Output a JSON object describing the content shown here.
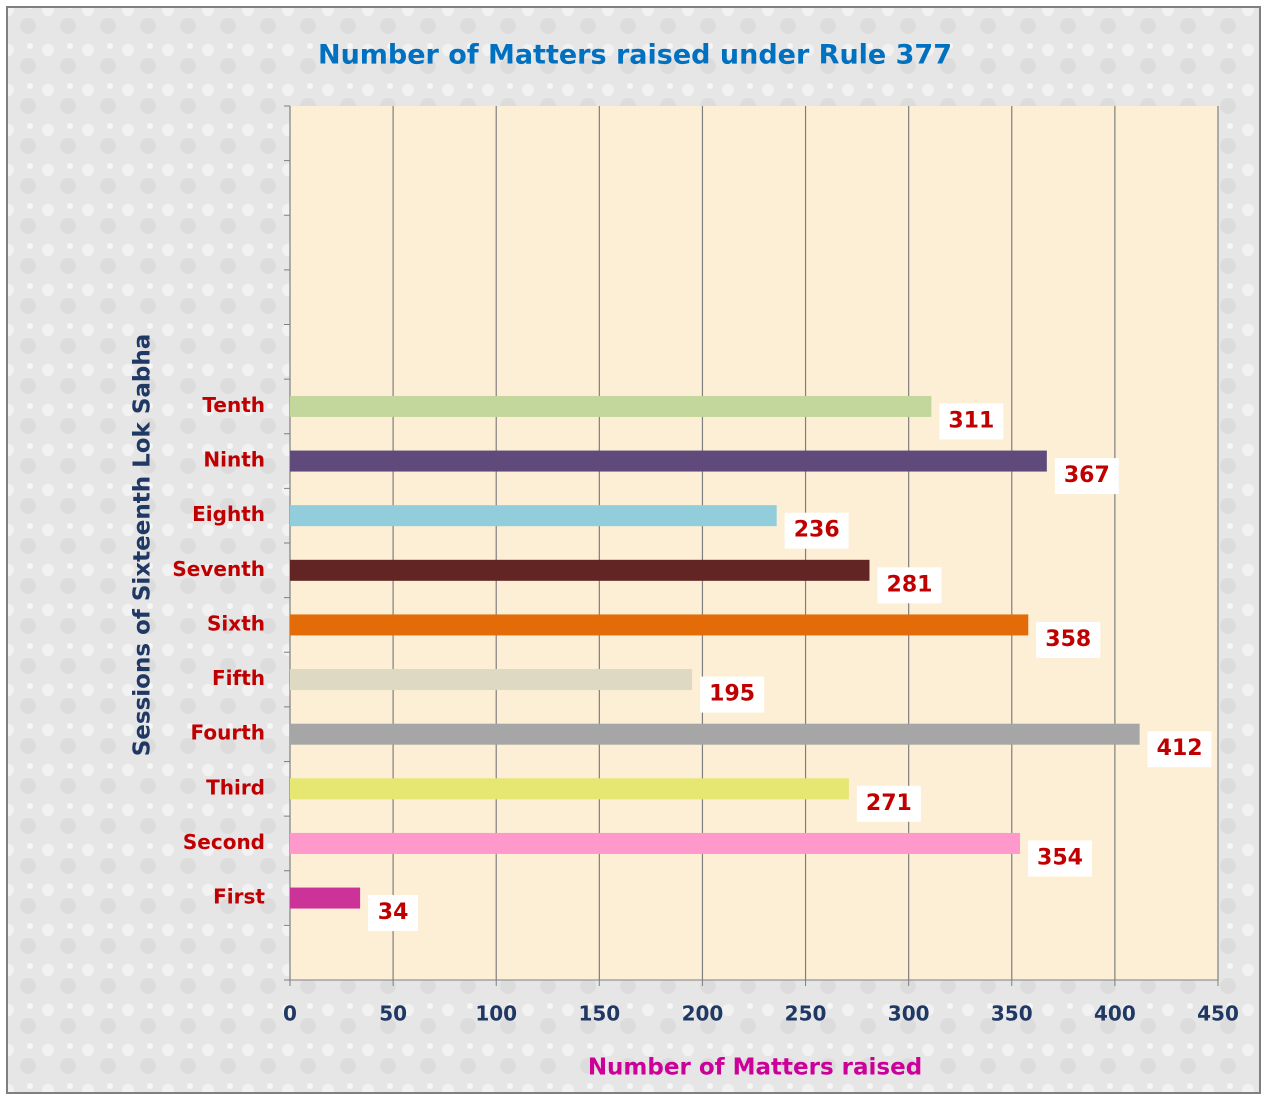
{
  "chart_data": {
    "type": "barh",
    "title": "Number of Matters raised under Rule 377",
    "xlabel": "Number of Matters raised",
    "ylabel": "Sessions of Sixteenth Lok Sabha",
    "categories": [
      null,
      "First",
      "Second",
      "Third",
      "Fourth",
      "Fifth",
      "Sixth",
      "Seventh",
      "Eighth",
      "Ninth",
      "Tenth",
      null,
      null,
      null,
      null,
      null
    ],
    "values": [
      null,
      34,
      354,
      271,
      412,
      195,
      358,
      281,
      236,
      367,
      311,
      null,
      null,
      null,
      null,
      null
    ],
    "colors": [
      null,
      "#cc3399",
      "#ff99cc",
      "#e6e673",
      "#a6a6a6",
      "#ddd9c3",
      "#e36c09",
      "#632523",
      "#92cddc",
      "#604a7b",
      "#c3d69b",
      null,
      null,
      null,
      null,
      null
    ],
    "xlim": [
      0,
      450
    ],
    "xticks": [
      0,
      50,
      100,
      150,
      200,
      250,
      300,
      350,
      400,
      450
    ],
    "grid": true
  }
}
